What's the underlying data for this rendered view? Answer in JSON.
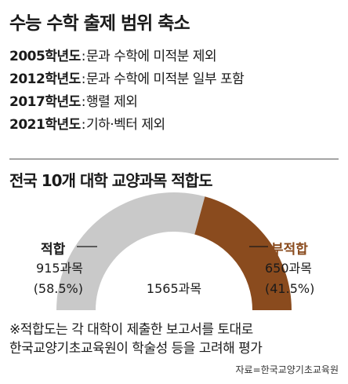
{
  "heading": "수능 수학 출제 범위 축소",
  "history": [
    {
      "year": "2005학년도",
      "detail": "문과 수학에 미적분 제외"
    },
    {
      "year": "2012학년도",
      "detail": "문과 수학에 미적분 일부 포함"
    },
    {
      "year": "2017학년도",
      "detail": "행렬 제외"
    },
    {
      "year": "2021학년도",
      "detail": "기하·벡터 제외"
    }
  ],
  "separator": ":",
  "chart_data": {
    "type": "pie",
    "title": "전국 10개 대학 교양과목 적합도",
    "total_label": "1565과목",
    "total": 1565,
    "slices": [
      {
        "name": "적합",
        "value": 915,
        "value_label": "915과목",
        "percent": 58.5,
        "percent_label": "(58.5%)",
        "color": "#c9c9c9"
      },
      {
        "name": "부적합",
        "value": 650,
        "value_label": "650과목",
        "percent": 41.5,
        "percent_label": "(41.5%)",
        "color": "#8a4b1e"
      }
    ]
  },
  "note_lines": [
    "※적합도는 각 대학이 제출한 보고서를 토대로",
    "한국교양기초교육원이 학술성 등을 고려해 평가"
  ],
  "source": "자료=한국교양기초교육원"
}
